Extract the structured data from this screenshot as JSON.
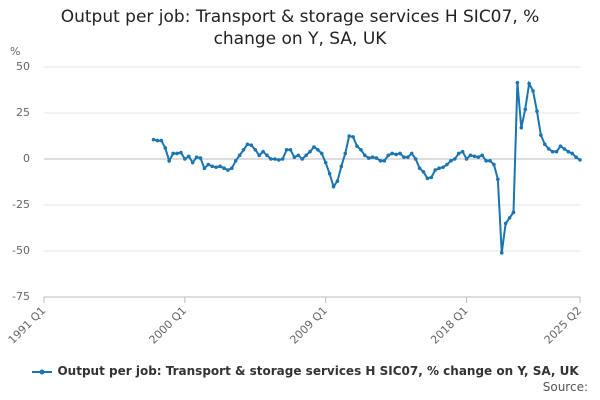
{
  "chart_data": {
    "type": "line",
    "title": "Output per job: Transport & storage services H SIC07, % change on Y, SA, UK",
    "y_label": "%",
    "source": "Source:",
    "categories": [
      "1991 Q1",
      null,
      null,
      null,
      null,
      null,
      null,
      null,
      null,
      null,
      null,
      null,
      null,
      null,
      null,
      null,
      null,
      null,
      null,
      null,
      null,
      null,
      null,
      null,
      null,
      null,
      null,
      null,
      null,
      null,
      null,
      null,
      null,
      null,
      null,
      null,
      "2000 Q1",
      null,
      null,
      null,
      null,
      null,
      null,
      null,
      null,
      null,
      null,
      null,
      null,
      null,
      null,
      null,
      null,
      null,
      null,
      null,
      null,
      null,
      null,
      null,
      null,
      null,
      null,
      null,
      null,
      null,
      null,
      null,
      null,
      null,
      null,
      null,
      "2009 Q1",
      null,
      null,
      null,
      null,
      null,
      null,
      null,
      null,
      null,
      null,
      null,
      null,
      null,
      null,
      null,
      null,
      null,
      null,
      null,
      null,
      null,
      null,
      null,
      null,
      null,
      null,
      null,
      null,
      null,
      null,
      null,
      null,
      null,
      null,
      null,
      "2018 Q1",
      null,
      null,
      null,
      null,
      null,
      null,
      null,
      null,
      null,
      null,
      null,
      null,
      null,
      null,
      null,
      null,
      null,
      null,
      null,
      null,
      null,
      null,
      null,
      null,
      null,
      null,
      null,
      null,
      "2025 Q2"
    ],
    "series": [
      {
        "name": "Output per job: Transport & storage services H SIC07, % change on Y, SA, UK",
        "color": "#1a75b0",
        "values": [
          null,
          null,
          null,
          null,
          null,
          null,
          null,
          null,
          null,
          null,
          null,
          null,
          null,
          null,
          null,
          null,
          null,
          null,
          null,
          null,
          null,
          null,
          null,
          null,
          null,
          null,
          null,
          null,
          10.5,
          10,
          10,
          6,
          -1,
          3,
          3,
          3.5,
          0,
          1.5,
          -2,
          1,
          0.5,
          -5,
          -3,
          -4,
          -4.5,
          -4,
          -5,
          -6,
          -5,
          -1,
          2,
          5,
          8,
          7.5,
          5,
          2,
          4,
          2,
          0,
          0,
          -0.5,
          0,
          5,
          5,
          1,
          2,
          0,
          2,
          4,
          6.5,
          5,
          3,
          -2,
          -8,
          -15,
          -12,
          -4,
          3,
          12.5,
          12,
          7,
          5,
          2,
          0.5,
          1,
          0.5,
          -1,
          -1,
          2,
          3,
          2.5,
          3,
          1,
          1,
          3,
          0,
          -5,
          -7,
          -10.5,
          -10,
          -6,
          -5,
          -4.5,
          -3,
          -1,
          0,
          3,
          4,
          0,
          2,
          1.5,
          1,
          2,
          -1,
          -1,
          -3,
          -11,
          -51,
          -35,
          -32,
          -29,
          41.5,
          17,
          27,
          41,
          37,
          26,
          13,
          8,
          5.5,
          4,
          4,
          7,
          5.5,
          4,
          3,
          1,
          -0.5
        ]
      }
    ],
    "ylim": [
      -75,
      50
    ],
    "yticks": [
      -75,
      -50,
      -25,
      0,
      25,
      50
    ],
    "grid": true
  }
}
